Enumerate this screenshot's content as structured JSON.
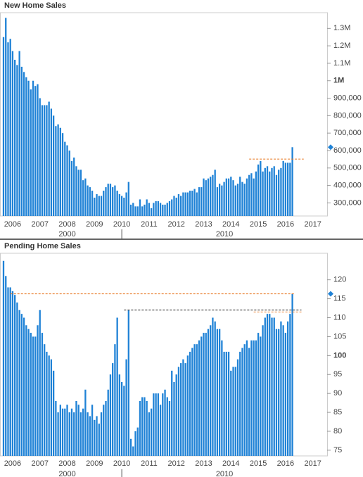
{
  "chart_data": [
    {
      "type": "bar",
      "title": "New Home Sales",
      "color": "#1f82d6",
      "categories": [
        null,
        null,
        null,
        null,
        "2006",
        null,
        null,
        null,
        null,
        null,
        null,
        null,
        null,
        null,
        null,
        null,
        "2007",
        null,
        null,
        null,
        null,
        null,
        null,
        null,
        null,
        null,
        null,
        null,
        "2008",
        null,
        null,
        null,
        null,
        null,
        null,
        null,
        null,
        null,
        null,
        null,
        "2009",
        null,
        null,
        null,
        null,
        null,
        null,
        null,
        null,
        null,
        null,
        null,
        "2010",
        null,
        null,
        null,
        null,
        null,
        null,
        null,
        null,
        null,
        null,
        null,
        "2011",
        null,
        null,
        null,
        null,
        null,
        null,
        null,
        null,
        null,
        null,
        null,
        "2012",
        null,
        null,
        null,
        null,
        null,
        null,
        null,
        null,
        null,
        null,
        null,
        "2013",
        null,
        null,
        null,
        null,
        null,
        null,
        null,
        null,
        null,
        null,
        null,
        "2014",
        null,
        null,
        null,
        null,
        null,
        null,
        null,
        null,
        null,
        null,
        null,
        "2015",
        null,
        null,
        null,
        null,
        null,
        null,
        null,
        null,
        null,
        null,
        null,
        "2016",
        null,
        null,
        null,
        null,
        null,
        null,
        null,
        null,
        null,
        null,
        null,
        "2017"
      ],
      "values": [
        1250000,
        1360000,
        1220000,
        1240000,
        1170000,
        1120000,
        1090000,
        1170000,
        1080000,
        1050000,
        1020000,
        1000000,
        950000,
        1000000,
        970000,
        980000,
        900000,
        860000,
        860000,
        860000,
        880000,
        840000,
        800000,
        740000,
        750000,
        730000,
        700000,
        650000,
        630000,
        600000,
        540000,
        560000,
        510000,
        490000,
        490000,
        430000,
        440000,
        400000,
        390000,
        370000,
        330000,
        350000,
        340000,
        340000,
        370000,
        390000,
        410000,
        410000,
        390000,
        400000,
        370000,
        350000,
        340000,
        330000,
        360000,
        420000,
        290000,
        300000,
        280000,
        280000,
        320000,
        280000,
        290000,
        320000,
        300000,
        270000,
        300000,
        310000,
        310000,
        300000,
        290000,
        290000,
        300000,
        310000,
        320000,
        340000,
        330000,
        350000,
        340000,
        360000,
        360000,
        360000,
        370000,
        370000,
        380000,
        360000,
        390000,
        390000,
        440000,
        430000,
        440000,
        450000,
        460000,
        490000,
        390000,
        410000,
        400000,
        420000,
        440000,
        440000,
        450000,
        430000,
        400000,
        410000,
        450000,
        420000,
        410000,
        440000,
        460000,
        470000,
        440000,
        480000,
        520000,
        540000,
        480000,
        500000,
        510000,
        480000,
        500000,
        510000,
        460000,
        490000,
        500000,
        540000,
        530000,
        530000,
        530000,
        619000,
        null,
        null,
        null,
        null,
        null,
        null,
        null,
        null,
        null
      ],
      "ylim": [
        225000,
        1390000
      ],
      "yticks": [
        {
          "value": 300000,
          "label": "300,000"
        },
        {
          "value": 400000,
          "label": "400,000"
        },
        {
          "value": 500000,
          "label": "500,000"
        },
        {
          "value": 600000,
          "label": "600,000"
        },
        {
          "value": 700000,
          "label": "700,000"
        },
        {
          "value": 800000,
          "label": "800,000"
        },
        {
          "value": 900000,
          "label": "900,000"
        },
        {
          "value": 1000000,
          "label": "1M",
          "bold": true
        },
        {
          "value": 1100000,
          "label": "1.1M"
        },
        {
          "value": 1200000,
          "label": "1.2M"
        },
        {
          "value": 1300000,
          "label": "1.3M"
        }
      ],
      "reference_lines": [
        {
          "value": 551000,
          "color": "#e87722"
        }
      ],
      "x_groups": [
        "2000",
        "2010"
      ]
    },
    {
      "type": "bar",
      "title": "Pending Home Sales",
      "color": "#1f82d6",
      "categories": [
        null,
        null,
        null,
        null,
        "2006",
        null,
        null,
        null,
        null,
        null,
        null,
        null,
        null,
        null,
        null,
        null,
        "2007",
        null,
        null,
        null,
        null,
        null,
        null,
        null,
        null,
        null,
        null,
        null,
        "2008",
        null,
        null,
        null,
        null,
        null,
        null,
        null,
        null,
        null,
        null,
        null,
        "2009",
        null,
        null,
        null,
        null,
        null,
        null,
        null,
        null,
        null,
        null,
        null,
        "2010",
        null,
        null,
        null,
        null,
        null,
        null,
        null,
        null,
        null,
        null,
        null,
        "2011",
        null,
        null,
        null,
        null,
        null,
        null,
        null,
        null,
        null,
        null,
        null,
        "2012",
        null,
        null,
        null,
        null,
        null,
        null,
        null,
        null,
        null,
        null,
        null,
        "2013",
        null,
        null,
        null,
        null,
        null,
        null,
        null,
        null,
        null,
        null,
        null,
        "2014",
        null,
        null,
        null,
        null,
        null,
        null,
        null,
        null,
        null,
        null,
        null,
        "2015",
        null,
        null,
        null,
        null,
        null,
        null,
        null,
        null,
        null,
        null,
        null,
        "2016",
        null,
        null,
        null,
        null,
        null,
        null,
        null,
        null,
        null,
        null,
        null,
        "2017"
      ],
      "values": [
        125,
        121,
        118,
        118,
        117,
        116,
        114,
        112,
        111,
        110,
        108,
        107,
        106,
        105,
        105,
        108,
        112,
        106,
        103,
        101,
        100,
        99,
        96,
        88,
        85,
        87,
        86,
        86,
        87,
        85,
        86,
        85,
        88,
        87,
        85,
        86,
        91,
        85,
        84,
        87,
        83,
        84,
        82,
        85,
        87,
        88,
        91,
        95,
        98,
        103,
        110,
        95,
        93,
        92,
        99,
        112,
        78,
        76,
        80,
        81,
        88,
        89,
        89,
        88,
        85,
        86,
        90,
        90,
        90,
        87,
        90,
        91,
        89,
        88,
        96,
        93,
        95,
        97,
        98,
        99,
        98,
        100,
        101,
        102,
        103,
        103,
        104,
        105,
        106,
        106,
        107,
        108,
        110,
        109,
        107,
        107,
        104,
        101,
        101,
        101,
        96,
        97,
        97,
        99,
        101,
        102,
        103,
        104,
        102,
        104,
        104,
        104,
        106,
        105,
        108,
        110,
        111,
        111,
        110,
        110,
        107,
        107,
        109,
        108,
        106,
        109,
        111,
        116.3,
        null,
        null,
        null,
        null,
        null,
        null,
        null,
        null,
        null
      ],
      "ylim": [
        73.5,
        127
      ],
      "yticks": [
        75,
        80,
        85,
        90,
        95,
        {
          "value": 100,
          "bold": true
        },
        105,
        110,
        115,
        120
      ],
      "reference_lines": [
        {
          "value": 116.3,
          "color": "#e87722"
        },
        {
          "value": 112,
          "color": "#333333"
        },
        {
          "value": 111.5,
          "color": "#e87722"
        }
      ],
      "x_groups": [
        "2000",
        "2010"
      ]
    }
  ]
}
